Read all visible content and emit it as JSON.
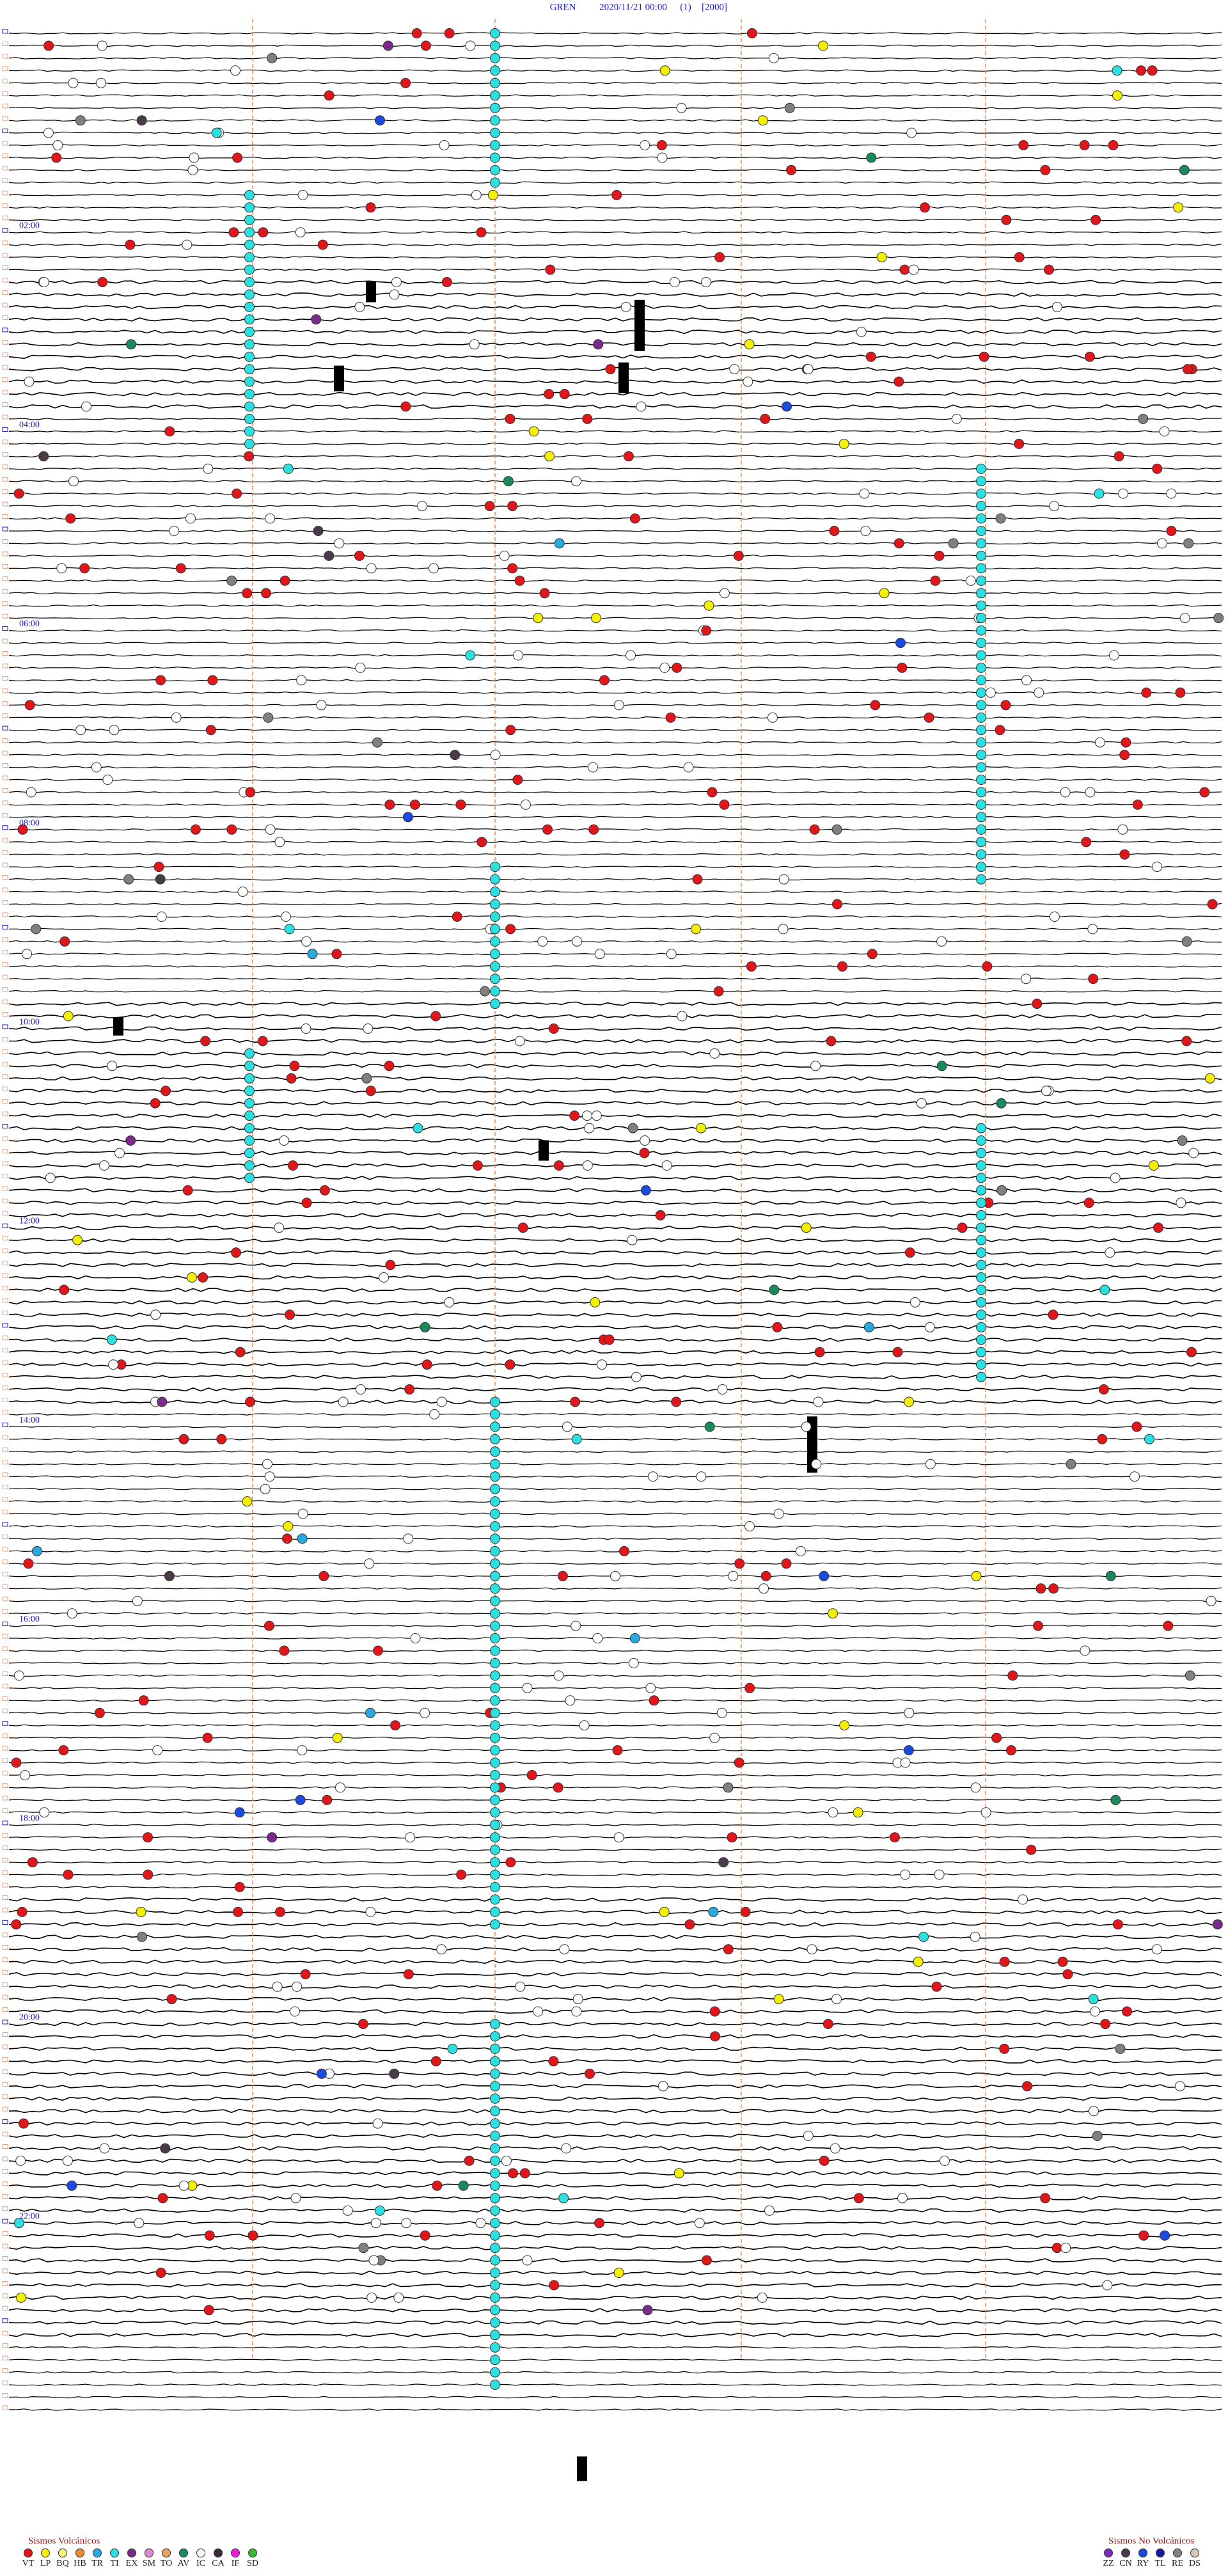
{
  "header": {
    "station": "GREN",
    "datetime": "2020/11/21 00:00",
    "index": "(1)",
    "scale": "[2000]"
  },
  "time_labels": [
    "02:00",
    "04:00",
    "06:00",
    "08:00",
    "10:00",
    "12:00",
    "14:00",
    "16:00",
    "18:00",
    "20:00",
    "22:00"
  ],
  "legend_volcanic": {
    "title": "Sismos Volcánicos",
    "items": [
      {
        "code": "VT",
        "color": "#e0161b"
      },
      {
        "code": "LP",
        "color": "#f5f000"
      },
      {
        "code": "BQ",
        "color": "#f5f07a"
      },
      {
        "code": "HB",
        "color": "#f08a28"
      },
      {
        "code": "TR",
        "color": "#2aa8e0"
      },
      {
        "code": "TI",
        "color": "#2de0e0"
      },
      {
        "code": "EX",
        "color": "#7a2a8a"
      },
      {
        "code": "SM",
        "color": "#e08ad0"
      },
      {
        "code": "TO",
        "color": "#e8a060"
      },
      {
        "code": "AV",
        "color": "#1a8a5a"
      },
      {
        "code": "IC",
        "color": "#ffffff"
      },
      {
        "code": "CA",
        "color": "#3a2a3a"
      },
      {
        "code": "IF",
        "color": "#f01ae0"
      },
      {
        "code": "SD",
        "color": "#3ab83a"
      }
    ]
  },
  "legend_non_volcanic": {
    "title": "Sismos No Volcánicos",
    "items": [
      {
        "code": "ZZ",
        "color": "#7a2ab8"
      },
      {
        "code": "CN",
        "color": "#4a3a4a"
      },
      {
        "code": "RY",
        "color": "#1a4ae0"
      },
      {
        "code": "TL",
        "color": "#1a1aa0"
      },
      {
        "code": "RE",
        "color": "#808080"
      },
      {
        "code": "DS",
        "color": "#d8c8b8"
      }
    ]
  }
}
